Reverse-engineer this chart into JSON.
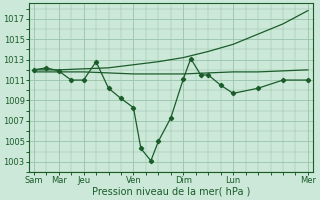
{
  "background_color": "#cce8d8",
  "grid_color": "#99c4aa",
  "line_color": "#1a5c2a",
  "marker_color": "#1a5c2a",
  "xlabel": "Pression niveau de la mer( hPa )",
  "ylim": [
    1002.0,
    1018.5
  ],
  "xlim": [
    -0.2,
    11.2
  ],
  "yticks": [
    1003,
    1005,
    1007,
    1009,
    1011,
    1013,
    1015,
    1017
  ],
  "xtick_major_pos": [
    0,
    1,
    2,
    4,
    6,
    8,
    11
  ],
  "xtick_major_labels": [
    "Sam",
    "Mar",
    "Jeu",
    "Ven",
    "Dim",
    "Lun",
    "Mer"
  ],
  "series_jagged": {
    "x": [
      0,
      0.5,
      1,
      1.5,
      2,
      2.5,
      3,
      3.5,
      4,
      4.3,
      4.7,
      5,
      5.5,
      6,
      6.3,
      6.7,
      7,
      7.5,
      8,
      9,
      10,
      11
    ],
    "y": [
      1012.0,
      1012.2,
      1011.9,
      1011.0,
      1011.0,
      1012.8,
      1010.2,
      1009.2,
      1008.3,
      1004.3,
      1003.1,
      1005.0,
      1007.3,
      1011.1,
      1013.1,
      1011.5,
      1011.5,
      1010.5,
      1009.7,
      1010.2,
      1011.0,
      1011.0
    ]
  },
  "series_rising": {
    "x": [
      0,
      1,
      2,
      3,
      4,
      5,
      6,
      7,
      8,
      9,
      10,
      11
    ],
    "y": [
      1012.0,
      1012.0,
      1012.1,
      1012.2,
      1012.5,
      1012.8,
      1013.2,
      1013.8,
      1014.5,
      1015.5,
      1016.5,
      1017.8
    ]
  },
  "series_flat": {
    "x": [
      0,
      1,
      2,
      3,
      4,
      5,
      6,
      7,
      8,
      9,
      10,
      11
    ],
    "y": [
      1011.8,
      1011.8,
      1011.8,
      1011.7,
      1011.6,
      1011.6,
      1011.6,
      1011.7,
      1011.8,
      1011.8,
      1011.9,
      1012.0
    ]
  }
}
